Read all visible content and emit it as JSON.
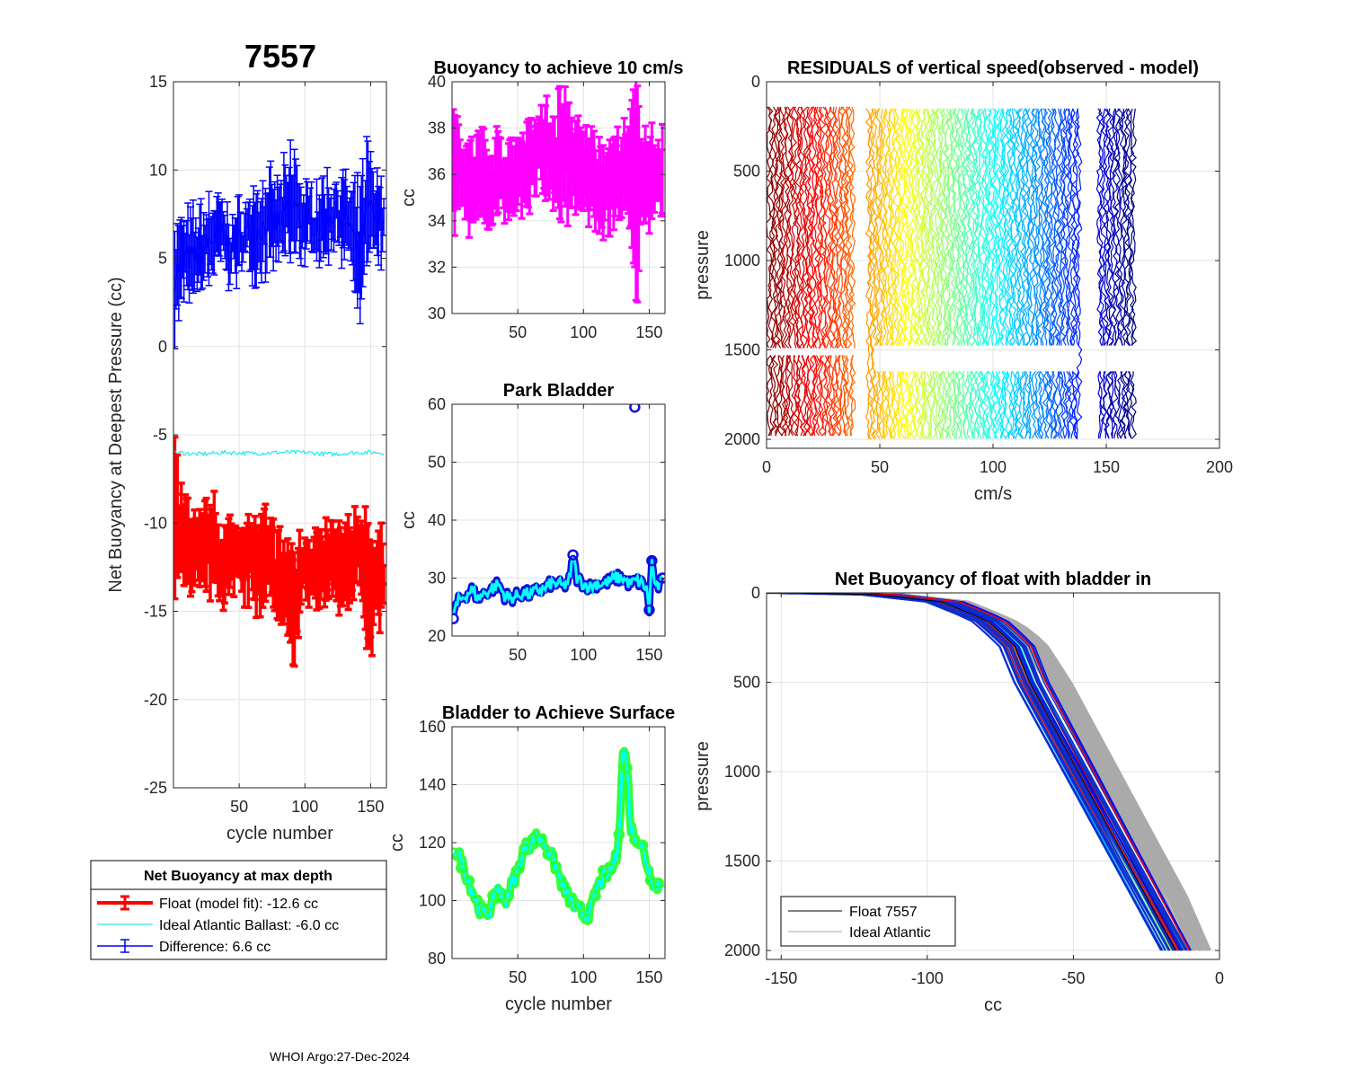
{
  "figure_title": "7557",
  "footer": "WHOI Argo:27-Dec-2024",
  "colors": {
    "float": "#ff0000",
    "ideal": "#00e5e5",
    "difference": "#0000ff",
    "magenta": "#ff00ff",
    "park_marker": "#1010dd",
    "park_line": "#00ffff",
    "surface_marker": "#33ff33",
    "surface_line": "#00ffff",
    "grey": "#aaaaaa"
  },
  "legend": {
    "title": "Net Buoyancy at max depth",
    "float": "Float (model fit): -12.6 cc",
    "ideal": "Ideal Atlantic Ballast:  -6.0 cc",
    "difference": "Difference:   6.6 cc"
  },
  "legend2": {
    "float": "Float 7557",
    "ideal": "Ideal Atlantic"
  },
  "chart_data": [
    {
      "id": "net-buoyancy",
      "type": "line",
      "title": "7557",
      "xlabel": "cycle number",
      "ylabel": "Net Buoyancy at Deepest Pressure (cc)",
      "xlim": [
        0,
        162
      ],
      "ylim": [
        -25,
        15
      ],
      "xticks": [
        50,
        100,
        150
      ],
      "yticks": [
        -25,
        -20,
        -15,
        -10,
        -5,
        0,
        5,
        10,
        15
      ],
      "series": [
        {
          "name": "Float (model fit)",
          "color": "#ff0000",
          "x": [
            1,
            8,
            15,
            22,
            29,
            36,
            43,
            50,
            57,
            64,
            71,
            78,
            85,
            92,
            99,
            106,
            113,
            120,
            127,
            134,
            141,
            148,
            155,
            160
          ],
          "y": [
            -10,
            -11,
            -11.5,
            -12,
            -11,
            -12.5,
            -12,
            -11.5,
            -12,
            -12.5,
            -12,
            -13,
            -13.5,
            -15,
            -12,
            -12.5,
            -13,
            -12,
            -13,
            -12.5,
            -11,
            -14,
            -13,
            -13
          ],
          "err": [
            3.5,
            2,
            2,
            2,
            2,
            2,
            1.5,
            1.5,
            2,
            2,
            2,
            2,
            2,
            3,
            1.5,
            1.5,
            2,
            1.5,
            2,
            2,
            1.5,
            3,
            2,
            2
          ]
        },
        {
          "name": "Ideal Atlantic Ballast",
          "color": "#00e5e5",
          "x": [
            1,
            20,
            40,
            60,
            80,
            100,
            120,
            140,
            160
          ],
          "y": [
            -6,
            -6.1,
            -6,
            -6.05,
            -6,
            -6,
            -6.1,
            -6,
            -6
          ]
        },
        {
          "name": "Difference",
          "color": "#0000ff",
          "x": [
            1,
            8,
            15,
            22,
            29,
            36,
            43,
            50,
            57,
            64,
            71,
            78,
            85,
            92,
            99,
            106,
            113,
            120,
            127,
            134,
            141,
            148,
            155,
            160
          ],
          "y": [
            4,
            5,
            5,
            5.5,
            6,
            6.5,
            5.5,
            6,
            6.5,
            6.5,
            7,
            7,
            7.5,
            8,
            7,
            7,
            7,
            7.5,
            7.5,
            7,
            5,
            8,
            7,
            7.5
          ],
          "err": [
            2.5,
            2,
            2,
            2,
            2,
            1.5,
            1.5,
            1.5,
            1.5,
            2,
            2,
            2,
            2,
            3,
            1.5,
            1.5,
            2,
            1.5,
            2,
            1.5,
            3,
            3,
            2,
            2
          ]
        }
      ]
    },
    {
      "id": "buoyancy-10cms",
      "type": "line",
      "title": "Buoyancy to achieve 10 cm/s",
      "ylabel": "cc",
      "xlim": [
        0,
        162
      ],
      "ylim": [
        30,
        40
      ],
      "xticks": [
        50,
        100,
        150
      ],
      "yticks": [
        30,
        32,
        34,
        36,
        38,
        40
      ],
      "series": [
        {
          "name": "buoyancy",
          "color": "#ff00ff",
          "x": [
            1,
            8,
            15,
            22,
            29,
            36,
            43,
            50,
            57,
            64,
            71,
            78,
            85,
            92,
            99,
            106,
            113,
            120,
            127,
            134,
            141,
            148,
            155,
            160
          ],
          "y": [
            36.5,
            36,
            35.5,
            36,
            35.5,
            36,
            35.5,
            36,
            36.5,
            37,
            37,
            36.5,
            37,
            36.5,
            36,
            36,
            35.5,
            35.5,
            36,
            36,
            35.5,
            36,
            35.5,
            36
          ],
          "err": [
            2,
            1.5,
            1.5,
            1.5,
            1.5,
            1.5,
            1.2,
            1.5,
            1.5,
            1.5,
            1.5,
            2,
            2.5,
            1.5,
            1.5,
            1.5,
            1.5,
            1.5,
            1.5,
            1.5,
            4,
            1.5,
            1.5,
            1.5
          ]
        }
      ]
    },
    {
      "id": "park-bladder",
      "type": "line",
      "title": "Park Bladder",
      "ylabel": "cc",
      "xlim": [
        0,
        162
      ],
      "ylim": [
        20,
        60
      ],
      "xticks": [
        50,
        100,
        150
      ],
      "yticks": [
        20,
        30,
        40,
        50,
        60
      ],
      "series": [
        {
          "name": "park",
          "color": "#00ffff",
          "x": [
            1,
            5,
            10,
            15,
            20,
            25,
            30,
            35,
            40,
            45,
            50,
            55,
            60,
            65,
            70,
            75,
            80,
            85,
            90,
            92,
            95,
            100,
            105,
            110,
            115,
            120,
            125,
            130,
            135,
            140,
            145,
            148,
            150,
            152,
            155,
            160
          ],
          "y": [
            24,
            26,
            27,
            28,
            26.5,
            27.5,
            28,
            29,
            27,
            26.5,
            27,
            27.5,
            27,
            28,
            28,
            29,
            29,
            28.5,
            30,
            34,
            30,
            29,
            28.5,
            29,
            29,
            29.5,
            30,
            30,
            29,
            29.5,
            29,
            28,
            24.5,
            33,
            28,
            29.5
          ]
        },
        {
          "name": "outlier",
          "color": "#1010dd",
          "x": [
            139
          ],
          "y": [
            59.5
          ]
        }
      ]
    },
    {
      "id": "bladder-surface",
      "type": "line",
      "title": "Bladder to Achieve Surface",
      "xlabel": "cycle number",
      "ylabel": "cc",
      "xlim": [
        0,
        162
      ],
      "ylim": [
        80,
        160
      ],
      "xticks": [
        50,
        100,
        150
      ],
      "yticks": [
        80,
        100,
        120,
        140,
        160
      ],
      "series": [
        {
          "name": "surface",
          "color": "#00ffff",
          "x": [
            1,
            5,
            10,
            15,
            20,
            25,
            30,
            35,
            40,
            45,
            50,
            55,
            60,
            65,
            70,
            75,
            80,
            85,
            90,
            95,
            100,
            105,
            110,
            115,
            120,
            125,
            128,
            130,
            133,
            136,
            140,
            145,
            150,
            155,
            160
          ],
          "y": [
            118,
            116,
            110,
            104,
            98,
            95,
            98,
            104,
            100,
            105,
            110,
            118,
            120,
            122,
            120,
            116,
            110,
            104,
            100,
            97,
            95,
            96,
            104,
            108,
            110,
            115,
            130,
            152,
            148,
            125,
            122,
            118,
            110,
            105,
            106
          ]
        }
      ]
    },
    {
      "id": "residuals",
      "type": "line",
      "title": "RESIDUALS of vertical speed(observed - model)",
      "xlabel": "cm/s",
      "ylabel": "pressure",
      "xlim": [
        0,
        200
      ],
      "ylim": [
        0,
        2050
      ],
      "xticks": [
        0,
        50,
        100,
        150,
        200
      ],
      "yticks": [
        0,
        500,
        1000,
        1500,
        2000
      ],
      "profile_offsets": "x = cycle number; one wiggly profile per cycle drawn from 150 dbar to 2000 dbar",
      "gaps_cycles": [
        39,
        40,
        41,
        42,
        43,
        44,
        139,
        140,
        141,
        142,
        143,
        144,
        145,
        146
      ]
    },
    {
      "id": "net-buoyancy-profile",
      "type": "line",
      "title": "Net Buoyancy of float with bladder in",
      "xlabel": "cc",
      "ylabel": "pressure",
      "xlim": [
        -155,
        0
      ],
      "ylim": [
        0,
        2050
      ],
      "xticks": [
        -150,
        -100,
        -50,
        0
      ],
      "yticks": [
        0,
        500,
        1000,
        1500,
        2000
      ],
      "series": [
        {
          "name": "Float 7557",
          "color": "#000000",
          "x": [
            -150,
            -120,
            -95,
            -80,
            -75,
            -70,
            -65,
            -55,
            -40,
            -25,
            -15
          ],
          "y": [
            0,
            5,
            50,
            150,
            220,
            300,
            500,
            800,
            1250,
            1700,
            2000
          ]
        },
        {
          "name": "Ideal Atlantic",
          "color": "#aaaaaa",
          "x": [
            -150,
            -115,
            -90,
            -75,
            -68,
            -63,
            -55,
            -45,
            -30,
            -15,
            -7
          ],
          "y": [
            0,
            5,
            50,
            150,
            220,
            300,
            500,
            800,
            1250,
            1700,
            2000
          ]
        }
      ]
    }
  ]
}
